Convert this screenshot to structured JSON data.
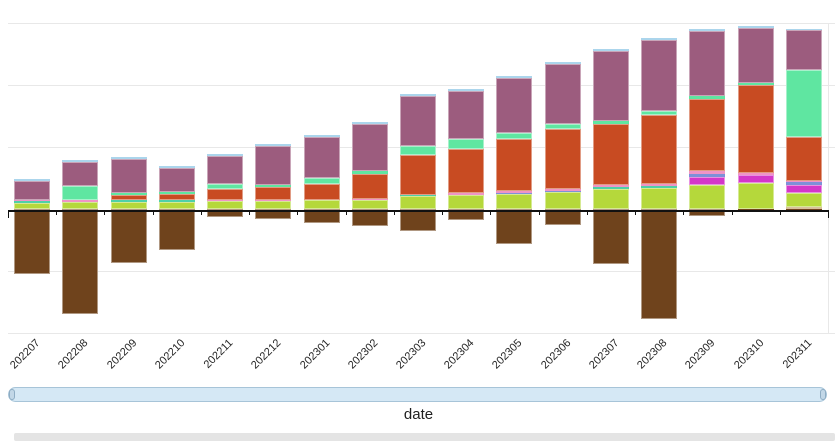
{
  "chart_data": {
    "type": "stacked-bar",
    "orientation": "vertical",
    "title": "",
    "xlabel": "date",
    "ylabel": "",
    "legend": "none",
    "grid": "horizontal, unlabeled (no y-axis tick labels visible)",
    "categories": [
      "202207",
      "202208",
      "202209",
      "202210",
      "202211",
      "202212",
      "202301",
      "202302",
      "202303",
      "202304",
      "202305",
      "202306",
      "202307",
      "202308",
      "202309",
      "202310",
      "202311"
    ],
    "value_units": "relative height units (y axis unlabeled in screenshot)",
    "series": [
      {
        "name": "tan",
        "color": "#d8c29b",
        "values": [
          0,
          0,
          0,
          0,
          0,
          0,
          0,
          0,
          0,
          0,
          0,
          0,
          0,
          0,
          0,
          0,
          2
        ]
      },
      {
        "name": "yellow-green",
        "color": "#b5d83b",
        "values": [
          6,
          7,
          7,
          7,
          8,
          8,
          9,
          9,
          13,
          14,
          15,
          17,
          20,
          21,
          24,
          26,
          14
        ]
      },
      {
        "name": "teal",
        "color": "#4fd0a8",
        "values": [
          2,
          0,
          2,
          2,
          0,
          0,
          0,
          0,
          1,
          0,
          0,
          0,
          2,
          2,
          0,
          0,
          0
        ]
      },
      {
        "name": "magenta",
        "color": "#d437c9",
        "values": [
          0,
          0,
          0,
          0,
          0,
          0,
          0,
          0,
          0,
          0,
          0,
          0,
          0,
          0,
          8,
          8,
          8
        ]
      },
      {
        "name": "periwinkle",
        "color": "#7e90d8",
        "values": [
          0,
          0,
          0,
          0,
          0,
          0,
          0,
          0,
          0,
          0,
          1,
          1,
          0,
          0,
          3,
          0,
          3
        ]
      },
      {
        "name": "pink",
        "color": "#ef94c6",
        "values": [
          1,
          2,
          0,
          0,
          1,
          1,
          0,
          1,
          0,
          2,
          2,
          2,
          2,
          2,
          3,
          2,
          1
        ]
      },
      {
        "name": "orange-red",
        "color": "#c84b22",
        "values": [
          0,
          0,
          5,
          6,
          11,
          13,
          16,
          25,
          40,
          44,
          52,
          60,
          61,
          69,
          72,
          88,
          44
        ]
      },
      {
        "name": "spring-green",
        "color": "#5fe6a1",
        "values": [
          0,
          14,
          2,
          2,
          5,
          2,
          6,
          3,
          9,
          10,
          6,
          5,
          3,
          4,
          3,
          2,
          67
        ]
      },
      {
        "name": "purple",
        "color": "#9c5c7e",
        "values": [
          19,
          24,
          34,
          24,
          28,
          39,
          41,
          47,
          50,
          48,
          55,
          60,
          70,
          71,
          65,
          55,
          40
        ]
      },
      {
        "name": "light-blue",
        "color": "#abd5ec",
        "values": [
          2,
          2,
          2,
          2,
          2,
          2,
          2,
          2,
          2,
          2,
          2,
          2,
          2,
          2,
          2,
          2,
          1
        ]
      }
    ],
    "negative_series": {
      "name": "brown",
      "color": "#6f431c",
      "values": [
        65,
        105,
        54,
        41,
        8,
        10,
        14,
        17,
        22,
        11,
        35,
        16,
        55,
        110,
        7,
        2,
        1
      ]
    }
  },
  "axis": {
    "x_title": "date"
  }
}
